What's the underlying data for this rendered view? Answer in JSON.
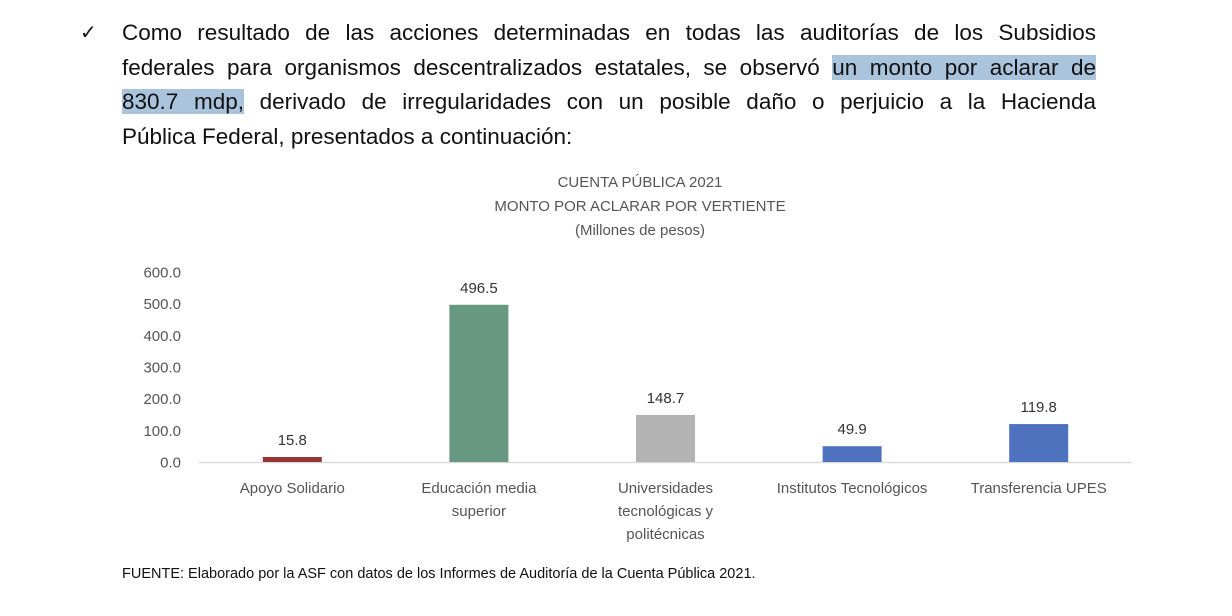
{
  "bullet": {
    "icon": "checkmark-icon",
    "lines": [
      [
        {
          "t": "Como resultado de las acciones determinadas en todas las auditorías de los Subsidios"
        }
      ],
      [
        {
          "t": "federales para organismos descentralizados estatales, se observó "
        },
        {
          "t": "un monto por aclarar de",
          "hl": true
        }
      ],
      [
        {
          "t": "830.7 mdp,",
          "hl": true
        },
        {
          "t": " derivado de irregularidades con un posible daño o perjuicio a la Hacienda"
        }
      ],
      [
        {
          "t": "Pública Federal, presentados a continuación:"
        }
      ]
    ]
  },
  "chart_data": {
    "type": "bar",
    "title": [
      "CUENTA PÚBLICA 2021",
      "MONTO POR ACLARAR POR VERTIENTE",
      "(Millones de pesos)"
    ],
    "categories": [
      [
        "Apoyo Solidario"
      ],
      [
        "Educación media",
        "superior"
      ],
      [
        "Universidades",
        "tecnológicas y",
        "politécnicas"
      ],
      [
        "Institutos Tecnológicos"
      ],
      [
        "Transferencia UPES"
      ]
    ],
    "values": [
      15.8,
      496.5,
      148.7,
      49.9,
      119.8
    ],
    "data_labels": [
      "15.8",
      "496.5",
      "148.7",
      "49.9",
      "119.8"
    ],
    "colors": [
      "#943634",
      "#669882",
      "#b3b3b3",
      "#4f72be",
      "#4f72be"
    ],
    "yticks": [
      "0.0",
      "100.0",
      "200.0",
      "300.0",
      "400.0",
      "500.0",
      "600.0"
    ],
    "ylim": [
      0,
      600
    ],
    "xlabel": "",
    "ylabel": "",
    "grid": false,
    "legend": "none"
  },
  "footer": {
    "source": "FUENTE: Elaborado por la ASF con datos de los Informes de Auditoría de la Cuenta Pública 2021."
  }
}
